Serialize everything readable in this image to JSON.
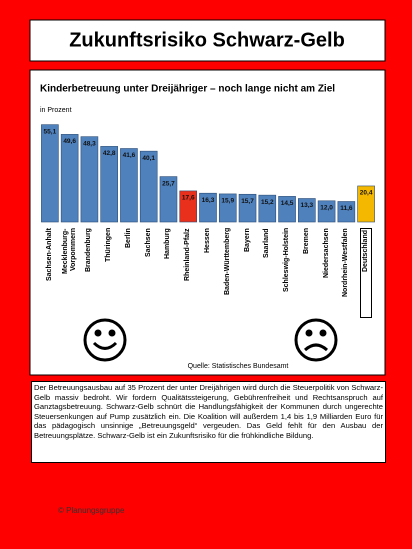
{
  "header": {
    "title": "Zukunftsrisiko Schwarz-Gelb"
  },
  "chart_data": {
    "type": "bar",
    "title": "Kinderbetreuung unter Dreijähriger – noch lange nicht am Ziel",
    "subtitle": "in Prozent",
    "source": "Quelle: Statistisches Bundesamt",
    "categories": [
      "Sachsen-Anhalt",
      "Mecklenburg-\nVorpommern",
      "Brandenburg",
      "Thüringen",
      "Berlin",
      "Sachsen",
      "Hamburg",
      "Rheinland-Pfalz",
      "Hessen",
      "Baden-Württemberg",
      "Bayern",
      "Saarland",
      "Schleswig-Holstein",
      "Bremen",
      "Niedersachsen",
      "Nordrhein-Westfalen",
      "Deutschland"
    ],
    "values": [
      55.1,
      49.6,
      48.3,
      42.8,
      41.6,
      40.1,
      25.7,
      17.6,
      16.3,
      15.9,
      15.7,
      15.2,
      14.5,
      13.3,
      12.0,
      11.6,
      20.4
    ],
    "value_labels": [
      "55,1",
      "49,6",
      "48,3",
      "42,8",
      "41,6",
      "40,1",
      "25,7",
      "17,6",
      "16,3",
      "15,9",
      "15,7",
      "15,2",
      "14,5",
      "13,3",
      "12,0",
      "11,6",
      "20,4"
    ],
    "colors": [
      "#4f81bd",
      "#4f81bd",
      "#4f81bd",
      "#4f81bd",
      "#4f81bd",
      "#4f81bd",
      "#4f81bd",
      "#e8301c",
      "#4f81bd",
      "#4f81bd",
      "#4f81bd",
      "#4f81bd",
      "#4f81bd",
      "#4f81bd",
      "#4f81bd",
      "#4f81bd",
      "#f5b800"
    ],
    "ylim": [
      0,
      60
    ]
  },
  "body": {
    "text": "Der Betreuungsausbau auf 35 Prozent der unter Dreijährigen wird durch die Steuerpolitik von Schwarz-Gelb massiv bedroht. Wir fordern Qualitätssteigerung, Gebührenfreiheit und Rechtsanspruch auf Ganztagsbetreuung. Schwarz-Gelb schnürt die Handlungsfähigkeit der Kommunen durch ungerechte Steuersenkungen auf Pump zusätzlich ein. Die Koalition will außerdem 1,4 bis 1,9 Milliarden Euro für das pädagogisch unsinnige „Betreuungsgeld“ vergeuden. Das Geld fehlt für den Ausbau der Betreuungsplätze. Schwarz-Gelb ist ein Zukunftsrisiko für die frühkindliche Bildung."
  },
  "footer": {
    "text": "© Planungsgruppe"
  }
}
